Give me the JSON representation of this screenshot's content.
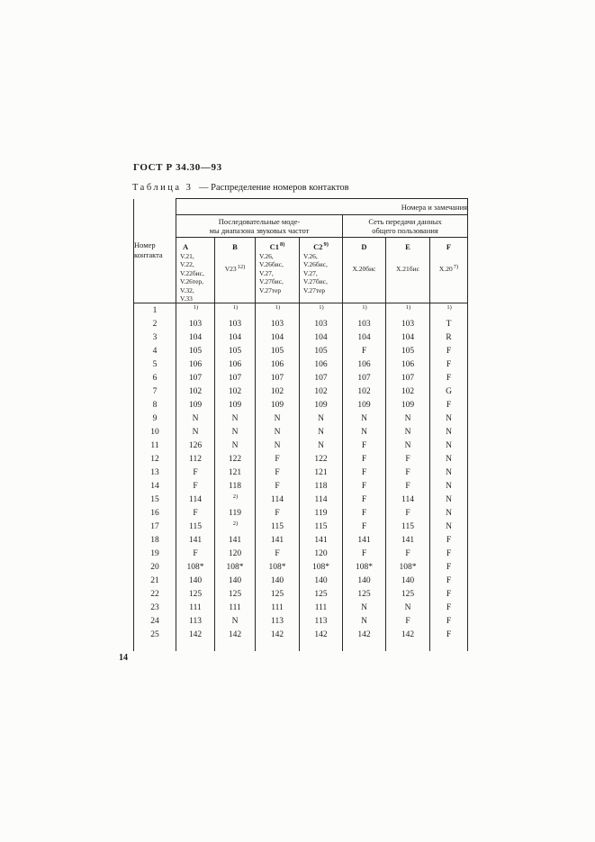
{
  "colors": {
    "paper": "#fcfcfa",
    "ink": "#1d1c1a",
    "rule": "#2a2824"
  },
  "page": {
    "doc_header": "ГОСТ Р 34.30—93",
    "caption_label": "Таблица 3",
    "caption_rest": "— Распределение номеров контактов",
    "page_number": "14"
  },
  "table": {
    "corner": [
      "Номер",
      "контакта"
    ],
    "top_header": "Номера и замечания",
    "groups": [
      {
        "lines": [
          "Последовательные моде-",
          "мы диапазона звуковых частот"
        ]
      },
      {
        "lines": [
          "Сеть передачи данных",
          "общего пользования"
        ]
      }
    ],
    "columns": [
      {
        "label": "A",
        "sup": "",
        "gap": false,
        "lines": [
          {
            "text": "V.21,"
          },
          {
            "text": "V.22,"
          },
          {
            "text": "V.22бис,"
          },
          {
            "text": "V.26тер,"
          },
          {
            "text": "V.32,"
          },
          {
            "text": "V.33"
          }
        ]
      },
      {
        "label": "B",
        "sup": "",
        "gap": true,
        "lines": [
          {
            "text": "V23",
            "sup": "12)"
          }
        ]
      },
      {
        "label": "C1",
        "sup": "8)",
        "gap": false,
        "lines": [
          {
            "text": "V.26,"
          },
          {
            "text": "V.26бис,"
          },
          {
            "text": "V.27,"
          },
          {
            "text": "V.27бис,"
          },
          {
            "text": "V.27тер"
          }
        ]
      },
      {
        "label": "C2",
        "sup": "9)",
        "gap": false,
        "lines": [
          {
            "text": "V.26,"
          },
          {
            "text": "V.26бис,"
          },
          {
            "text": "V.27,"
          },
          {
            "text": "V.27бис,"
          },
          {
            "text": "V.27тер"
          }
        ]
      },
      {
        "label": "D",
        "sup": "",
        "gap": true,
        "lines": [
          {
            "text": "X.20бис"
          }
        ]
      },
      {
        "label": "E",
        "sup": "",
        "gap": true,
        "lines": [
          {
            "text": "X.21бис"
          }
        ]
      },
      {
        "label": "F",
        "sup": "",
        "gap": true,
        "lines": [
          {
            "text": "X.20",
            "sup": "7)"
          }
        ]
      }
    ],
    "rows": [
      [
        "1",
        "1)",
        "1)",
        "1)",
        "1)",
        "1)",
        "1)",
        "1)"
      ],
      [
        "2",
        "103",
        "103",
        "103",
        "103",
        "103",
        "103",
        "T"
      ],
      [
        "3",
        "104",
        "104",
        "104",
        "104",
        "104",
        "104",
        "R"
      ],
      [
        "4",
        "105",
        "105",
        "105",
        "105",
        "F",
        "105",
        "F"
      ],
      [
        "5",
        "106",
        "106",
        "106",
        "106",
        "106",
        "106",
        "F"
      ],
      [
        "6",
        "107",
        "107",
        "107",
        "107",
        "107",
        "107",
        "F"
      ],
      [
        "7",
        "102",
        "102",
        "102",
        "102",
        "102",
        "102",
        "G"
      ],
      [
        "8",
        "109",
        "109",
        "109",
        "109",
        "109",
        "109",
        "F"
      ],
      [
        "9",
        "N",
        "N",
        "N",
        "N",
        "N",
        "N",
        "N"
      ],
      [
        "10",
        "N",
        "N",
        "N",
        "N",
        "N",
        "N",
        "N"
      ],
      [
        "11",
        "126",
        "N",
        "N",
        "N",
        "F",
        "N",
        "N"
      ],
      [
        "12",
        "112",
        "122",
        "F",
        "122",
        "F",
        "F",
        "N"
      ],
      [
        "13",
        "F",
        "121",
        "F",
        "121",
        "F",
        "F",
        "N"
      ],
      [
        "14",
        "F",
        "118",
        "F",
        "118",
        "F",
        "F",
        "N"
      ],
      [
        "15",
        "114",
        "2)",
        "114",
        "114",
        "F",
        "114",
        "N"
      ],
      [
        "16",
        "F",
        "119",
        "F",
        "119",
        "F",
        "F",
        "N"
      ],
      [
        "17",
        "115",
        "2)",
        "115",
        "115",
        "F",
        "115",
        "N"
      ],
      [
        "18",
        "141",
        "141",
        "141",
        "141",
        "141",
        "141",
        "F"
      ],
      [
        "19",
        "F",
        "120",
        "F",
        "120",
        "F",
        "F",
        "F"
      ],
      [
        "20",
        "108*",
        "108*",
        "108*",
        "108*",
        "108*",
        "108*",
        "F"
      ],
      [
        "21",
        "140",
        "140",
        "140",
        "140",
        "140",
        "140",
        "F"
      ],
      [
        "22",
        "125",
        "125",
        "125",
        "125",
        "125",
        "125",
        "F"
      ],
      [
        "23",
        "111",
        "111",
        "111",
        "111",
        "N",
        "N",
        "F"
      ],
      [
        "24",
        "113",
        "N",
        "113",
        "113",
        "N",
        "F",
        "F"
      ],
      [
        "25",
        "142",
        "142",
        "142",
        "142",
        "142",
        "142",
        "F"
      ]
    ]
  }
}
